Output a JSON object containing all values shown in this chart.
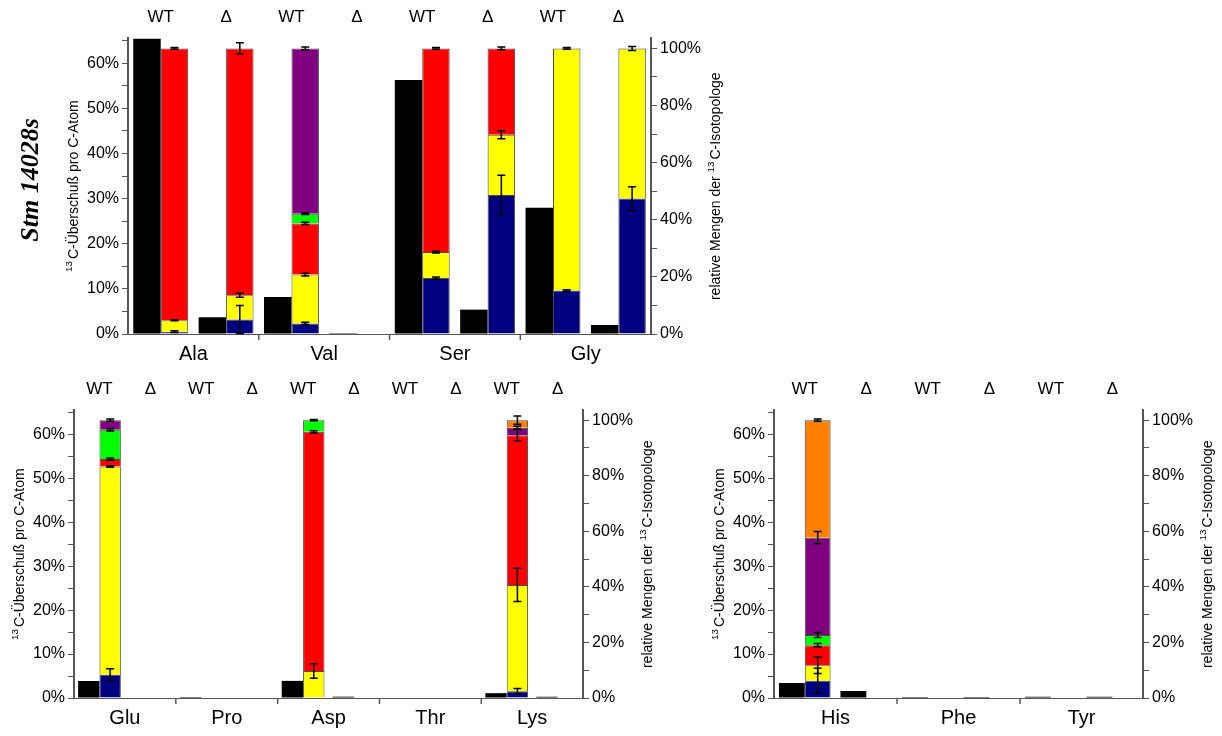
{
  "chart_data": [
    {
      "type": "bar",
      "title": "Stm 14028s",
      "ylabel": "$^{13}$C-Überschuß pro C-Atom",
      "y2label": "relative Mengen der $^{13}$C-Isotopologe",
      "categories": [
        "WT",
        "Δ",
        "WT",
        "Δ",
        "WT",
        "Δ",
        "WT",
        "Δ"
      ],
      "annotations": [
        "Ala",
        "Val",
        "Ser",
        "Gly"
      ],
      "stacked": true,
      "ylim": [
        0,
        65.5
      ],
      "yticks": [
        {
          "value": 0,
          "label": "0%"
        },
        {
          "value": 5,
          "label": null
        },
        {
          "value": 10,
          "label": "10%"
        },
        {
          "value": 15,
          "label": null
        },
        {
          "value": 20,
          "label": "20%"
        },
        {
          "value": 25,
          "label": null
        },
        {
          "value": 30,
          "label": "30%"
        },
        {
          "value": 35,
          "label": null
        },
        {
          "value": 40,
          "label": "40%"
        },
        {
          "value": 45,
          "label": null
        },
        {
          "value": 50,
          "label": "50%"
        },
        {
          "value": 55,
          "label": null
        },
        {
          "value": 60,
          "label": "60%"
        },
        {
          "value": 65,
          "label": null
        }
      ],
      "y2lim": [
        0,
        103.5
      ],
      "y2ticks": [
        {
          "value": 0,
          "label": "0%"
        },
        {
          "value": 10,
          "label": null
        },
        {
          "value": 20,
          "label": "20%"
        },
        {
          "value": 30,
          "label": null
        },
        {
          "value": 40,
          "label": "40%"
        },
        {
          "value": 50,
          "label": null
        },
        {
          "value": 60,
          "label": "60%"
        },
        {
          "value": 70,
          "label": null
        },
        {
          "value": 80,
          "label": "80%"
        },
        {
          "value": 90,
          "label": null
        },
        {
          "value": 100,
          "label": "100%"
        }
      ],
      "series": [
        {
          "color": "#000000",
          "values": [
            65.5,
            3.7,
            8.2,
            0.2,
            56.3,
            5.4,
            28.0,
            2.0
          ]
        },
        {
          "color": "#000080",
          "axis": "y2",
          "values": [
            0.8,
            5.1,
            3.7,
            null,
            19.6,
            48.7,
            15.2,
            47.4
          ],
          "errors": [
            0.3,
            4.9,
            0.4,
            null,
            0.4,
            6.9,
            0.3,
            4.2
          ]
        },
        {
          "color": "#ffff00",
          "axis": "y2",
          "values": [
            4.0,
            8.5,
            17.1,
            null,
            9.1,
            21.1,
            84.8,
            52.6
          ],
          "errors": [
            0.2,
            0.7,
            0.5,
            null,
            0.3,
            1.4,
            0.3,
            0.7
          ]
        },
        {
          "color": "#ff0000",
          "axis": "y2",
          "values": [
            95.2,
            86.4,
            17.9,
            null,
            71.3,
            30.2,
            null,
            null
          ],
          "errors": [
            0.3,
            2.0,
            0.4,
            null,
            0.3,
            0.5,
            null,
            null
          ]
        },
        {
          "color": "#00ff00",
          "axis": "y2",
          "values": [
            null,
            null,
            3.4,
            null,
            null,
            null,
            null,
            null
          ],
          "errors": [
            null,
            null,
            0.3,
            null,
            null,
            null,
            null,
            null
          ]
        },
        {
          "color": "#800080",
          "axis": "y2",
          "values": [
            null,
            null,
            57.9,
            null,
            null,
            null,
            null,
            null
          ],
          "errors": [
            null,
            null,
            0.5,
            null,
            null,
            null,
            null,
            null
          ]
        }
      ]
    },
    {
      "type": "bar",
      "ylabel": "$^{13}$C-Überschuß pro C-Atom",
      "y2label": "relative Mengen der $^{13}$C-Isotopologe",
      "categories": [
        "WT",
        "Δ",
        "WT",
        "Δ",
        "WT",
        "Δ",
        "WT",
        "Δ",
        "WT",
        "Δ"
      ],
      "annotations": [
        "Glu",
        "Pro",
        "Asp",
        "Thr",
        "Lys"
      ],
      "stacked": true,
      "ylim": [
        0,
        65.5
      ],
      "yticks": [
        {
          "value": 0,
          "label": "0%"
        },
        {
          "value": 5,
          "label": null
        },
        {
          "value": 10,
          "label": "10%"
        },
        {
          "value": 15,
          "label": null
        },
        {
          "value": 20,
          "label": "20%"
        },
        {
          "value": 25,
          "label": null
        },
        {
          "value": 30,
          "label": "30%"
        },
        {
          "value": 35,
          "label": null
        },
        {
          "value": 40,
          "label": "40%"
        },
        {
          "value": 45,
          "label": null
        },
        {
          "value": 50,
          "label": "50%"
        },
        {
          "value": 55,
          "label": null
        },
        {
          "value": 60,
          "label": "60%"
        },
        {
          "value": 65,
          "label": null
        }
      ],
      "y2lim": [
        0,
        103.5
      ],
      "y2ticks": [
        {
          "value": 0,
          "label": "0%"
        },
        {
          "value": 10,
          "label": null
        },
        {
          "value": 20,
          "label": "20%"
        },
        {
          "value": 30,
          "label": null
        },
        {
          "value": 40,
          "label": "40%"
        },
        {
          "value": 50,
          "label": null
        },
        {
          "value": 60,
          "label": "60%"
        },
        {
          "value": 70,
          "label": null
        },
        {
          "value": 80,
          "label": "80%"
        },
        {
          "value": 90,
          "label": null
        },
        {
          "value": 100,
          "label": "100%"
        }
      ],
      "series": [
        {
          "color": "#000000",
          "values": [
            3.9,
            null,
            0.2,
            null,
            3.9,
            0.3,
            null,
            null,
            1.1,
            0.3
          ]
        },
        {
          "color": "#000080",
          "axis": "y2",
          "values": [
            8.4,
            null,
            null,
            null,
            null,
            null,
            null,
            null,
            2.4,
            null
          ],
          "errors": [
            2.1,
            null,
            null,
            null,
            null,
            null,
            null,
            null,
            1.0,
            null
          ]
        },
        {
          "color": "#ffff00",
          "axis": "y2",
          "values": [
            74.9,
            null,
            null,
            null,
            9.7,
            null,
            null,
            null,
            38.3,
            null
          ],
          "errors": [
            0.3,
            null,
            null,
            null,
            2.6,
            null,
            null,
            null,
            6.0,
            null
          ]
        },
        {
          "color": "#ff0000",
          "axis": "y2",
          "values": [
            2.7,
            null,
            null,
            null,
            86.1,
            null,
            null,
            null,
            53.9,
            null
          ],
          "errors": [
            0.4,
            null,
            null,
            null,
            0.4,
            null,
            null,
            null,
            2.0,
            null
          ]
        },
        {
          "color": "#00ff00",
          "axis": "y2",
          "values": [
            10.5,
            null,
            null,
            null,
            4.2,
            null,
            null,
            null,
            null,
            null
          ],
          "errors": [
            0.4,
            null,
            null,
            null,
            0.2,
            null,
            null,
            null,
            null,
            null
          ]
        },
        {
          "color": "#800080",
          "axis": "y2",
          "values": [
            3.5,
            null,
            null,
            null,
            null,
            null,
            null,
            null,
            2.7,
            null
          ],
          "errors": [
            0.4,
            null,
            null,
            null,
            null,
            null,
            null,
            null,
            0.5,
            null
          ]
        },
        {
          "color": "#ff8000",
          "axis": "y2",
          "values": [
            null,
            null,
            null,
            null,
            null,
            null,
            null,
            null,
            2.7,
            null
          ],
          "errors": [
            null,
            null,
            null,
            null,
            null,
            null,
            null,
            null,
            1.5,
            null
          ]
        }
      ]
    },
    {
      "type": "bar",
      "ylabel": "$^{13}$C-Überschuß pro C-Atom",
      "y2label": "relative Mengen der $^{13}$C-Isotopologe",
      "categories": [
        "WT",
        "Δ",
        "WT",
        "Δ",
        "WT",
        "Δ"
      ],
      "annotations": [
        "His",
        "Phe",
        "Tyr"
      ],
      "stacked": true,
      "ylim": [
        0,
        65.5
      ],
      "yticks": [
        {
          "value": 0,
          "label": "0%"
        },
        {
          "value": 5,
          "label": null
        },
        {
          "value": 10,
          "label": "10%"
        },
        {
          "value": 15,
          "label": null
        },
        {
          "value": 20,
          "label": "20%"
        },
        {
          "value": 25,
          "label": null
        },
        {
          "value": 30,
          "label": "30%"
        },
        {
          "value": 35,
          "label": null
        },
        {
          "value": 40,
          "label": "40%"
        },
        {
          "value": 45,
          "label": null
        },
        {
          "value": 50,
          "label": "50%"
        },
        {
          "value": 55,
          "label": null
        },
        {
          "value": 60,
          "label": "60%"
        },
        {
          "value": 65,
          "label": null
        }
      ],
      "y2lim": [
        0,
        103.5
      ],
      "y2ticks": [
        {
          "value": 0,
          "label": "0%"
        },
        {
          "value": 10,
          "label": null
        },
        {
          "value": 20,
          "label": "20%"
        },
        {
          "value": 30,
          "label": null
        },
        {
          "value": 40,
          "label": "40%"
        },
        {
          "value": 50,
          "label": null
        },
        {
          "value": 60,
          "label": "60%"
        },
        {
          "value": 70,
          "label": null
        },
        {
          "value": 80,
          "label": "80%"
        },
        {
          "value": 90,
          "label": null
        },
        {
          "value": 100,
          "label": "100%"
        }
      ],
      "series": [
        {
          "color": "#000000",
          "values": [
            3.4,
            1.6,
            0.2,
            0.2,
            0.3,
            0.3
          ]
        },
        {
          "color": "#000080",
          "axis": "y2",
          "values": [
            6.2,
            null,
            null,
            null,
            null,
            null
          ],
          "errors": [
            4.5,
            null,
            null,
            null,
            null,
            null
          ]
        },
        {
          "color": "#ffff00",
          "axis": "y2",
          "values": [
            5.6,
            null,
            null,
            null,
            null,
            null
          ],
          "errors": [
            3.0,
            null,
            null,
            null,
            null,
            null
          ]
        },
        {
          "color": "#ff0000",
          "axis": "y2",
          "values": [
            7.2,
            null,
            null,
            null,
            null,
            null
          ],
          "errors": [
            0.6,
            null,
            null,
            null,
            null,
            null
          ]
        },
        {
          "color": "#00ff00",
          "axis": "y2",
          "values": [
            3.7,
            null,
            null,
            null,
            null,
            null
          ],
          "errors": [
            0.9,
            null,
            null,
            null,
            null,
            null
          ]
        },
        {
          "color": "#800080",
          "axis": "y2",
          "values": [
            35.0,
            null,
            null,
            null,
            null,
            null
          ],
          "errors": [
            2.2,
            null,
            null,
            null,
            null,
            null
          ]
        },
        {
          "color": "#ff8000",
          "axis": "y2",
          "values": [
            42.3,
            null,
            null,
            null,
            null,
            null
          ],
          "errors": [
            0.4,
            null,
            null,
            null,
            null,
            null
          ]
        }
      ]
    }
  ]
}
